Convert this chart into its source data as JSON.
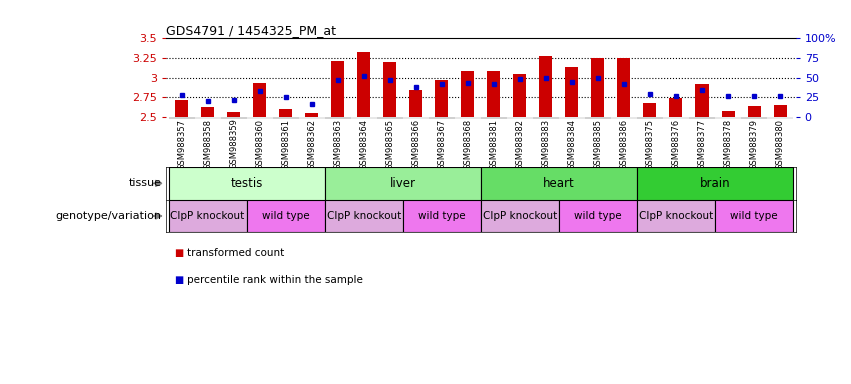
{
  "title": "GDS4791 / 1454325_PM_at",
  "samples": [
    "GSM988357",
    "GSM988358",
    "GSM988359",
    "GSM988360",
    "GSM988361",
    "GSM988362",
    "GSM988363",
    "GSM988364",
    "GSM988365",
    "GSM988366",
    "GSM988367",
    "GSM988368",
    "GSM988381",
    "GSM988382",
    "GSM988383",
    "GSM988384",
    "GSM988385",
    "GSM988386",
    "GSM988375",
    "GSM988376",
    "GSM988377",
    "GSM988378",
    "GSM988379",
    "GSM988380"
  ],
  "bar_values": [
    2.72,
    2.63,
    2.57,
    2.93,
    2.6,
    2.55,
    3.21,
    3.33,
    3.2,
    2.84,
    2.97,
    3.08,
    3.09,
    3.05,
    3.28,
    3.14,
    3.25,
    3.25,
    2.68,
    2.74,
    2.92,
    2.58,
    2.64,
    2.65
  ],
  "percentile_values": [
    28,
    20,
    22,
    33,
    25,
    17,
    47,
    52,
    47,
    38,
    42,
    43,
    42,
    48,
    50,
    45,
    50,
    42,
    30,
    27,
    35,
    27,
    27,
    27
  ],
  "bar_color": "#cc0000",
  "percentile_color": "#0000cc",
  "ymin": 2.5,
  "ymax": 3.5,
  "yticks_left": [
    2.5,
    2.75,
    3.0,
    3.25,
    3.5
  ],
  "yticks_left_labels": [
    "2.5",
    "2.75",
    "3",
    "3.25",
    "3.5"
  ],
  "yticks_right": [
    0,
    25,
    50,
    75,
    100
  ],
  "yticks_right_labels": [
    "0",
    "25",
    "50",
    "75",
    "100%"
  ],
  "grid_values": [
    2.75,
    3.0,
    3.25
  ],
  "tissues": [
    {
      "label": "testis",
      "start": 0,
      "end": 6,
      "color": "#ccffcc"
    },
    {
      "label": "liver",
      "start": 6,
      "end": 12,
      "color": "#99ee99"
    },
    {
      "label": "heart",
      "start": 12,
      "end": 18,
      "color": "#66dd66"
    },
    {
      "label": "brain",
      "start": 18,
      "end": 24,
      "color": "#33cc33"
    }
  ],
  "genotypes": [
    {
      "label": "ClpP knockout",
      "start": 0,
      "end": 3,
      "color": "#ddaadd"
    },
    {
      "label": "wild type",
      "start": 3,
      "end": 6,
      "color": "#ee77ee"
    },
    {
      "label": "ClpP knockout",
      "start": 6,
      "end": 9,
      "color": "#ddaadd"
    },
    {
      "label": "wild type",
      "start": 9,
      "end": 12,
      "color": "#ee77ee"
    },
    {
      "label": "ClpP knockout",
      "start": 12,
      "end": 15,
      "color": "#ddaadd"
    },
    {
      "label": "wild type",
      "start": 15,
      "end": 18,
      "color": "#ee77ee"
    },
    {
      "label": "ClpP knockout",
      "start": 18,
      "end": 21,
      "color": "#ddaadd"
    },
    {
      "label": "wild type",
      "start": 21,
      "end": 24,
      "color": "#ee77ee"
    }
  ],
  "bg_color": "#ffffff",
  "plot_bg_color": "#ffffff",
  "xticklabel_bg": "#d0d0d0"
}
